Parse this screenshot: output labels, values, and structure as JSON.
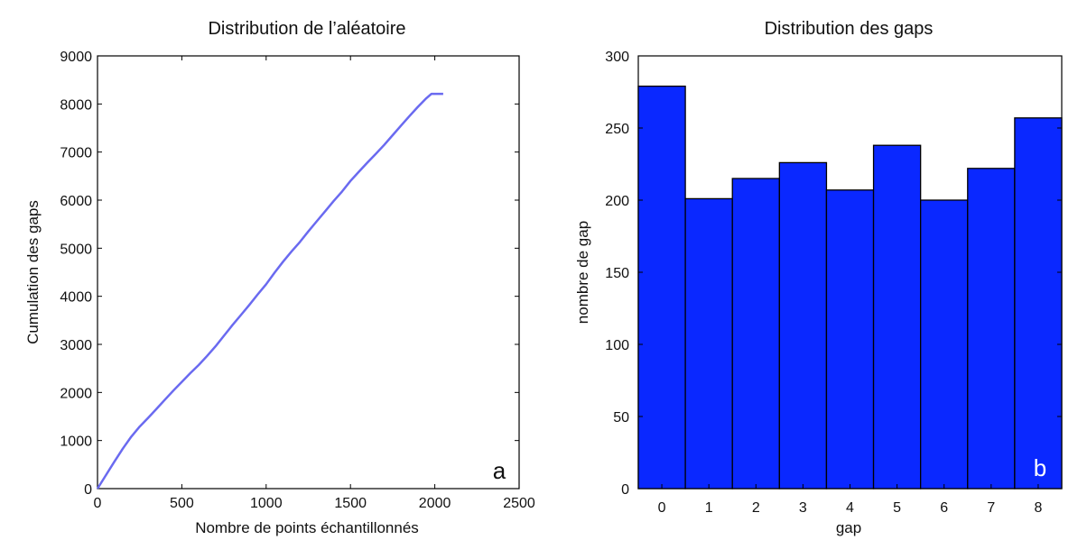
{
  "chart_data": [
    {
      "type": "line",
      "title": "Distribution de l’aléatoire",
      "xlabel": "Nombre de points échantillonnés",
      "ylabel": "Cumulation des gaps",
      "panel_label": "a",
      "xlim": [
        0,
        2500
      ],
      "ylim": [
        0,
        9000
      ],
      "xticks": [
        0,
        500,
        1000,
        1500,
        2000,
        2500
      ],
      "yticks": [
        0,
        1000,
        2000,
        3000,
        4000,
        5000,
        6000,
        7000,
        8000,
        9000
      ],
      "color": "#6a6af0",
      "x": [
        0,
        50,
        100,
        150,
        200,
        250,
        300,
        350,
        400,
        450,
        500,
        550,
        600,
        650,
        700,
        750,
        800,
        850,
        900,
        950,
        1000,
        1050,
        1100,
        1150,
        1200,
        1250,
        1300,
        1350,
        1400,
        1450,
        1500,
        1550,
        1600,
        1650,
        1700,
        1750,
        1800,
        1850,
        1900,
        1950,
        1980,
        2000,
        2050
      ],
      "y": [
        0,
        280,
        560,
        830,
        1080,
        1290,
        1470,
        1660,
        1850,
        2040,
        2220,
        2400,
        2570,
        2760,
        2960,
        3180,
        3400,
        3610,
        3820,
        4040,
        4250,
        4490,
        4720,
        4930,
        5130,
        5350,
        5560,
        5770,
        5980,
        6180,
        6400,
        6590,
        6780,
        6960,
        7150,
        7350,
        7550,
        7750,
        7940,
        8120,
        8210,
        8210,
        8210
      ]
    },
    {
      "type": "bar",
      "title": "Distribution des gaps",
      "xlabel": "gap",
      "ylabel": "nombre de gap",
      "panel_label": "b",
      "categories": [
        "0",
        "1",
        "2",
        "3",
        "4",
        "5",
        "6",
        "7",
        "8"
      ],
      "values": [
        279,
        201,
        215,
        226,
        207,
        238,
        200,
        222,
        257
      ],
      "ylim": [
        0,
        300
      ],
      "yticks": [
        0,
        50,
        100,
        150,
        200,
        250,
        300
      ],
      "color": "#0a28ff"
    }
  ]
}
